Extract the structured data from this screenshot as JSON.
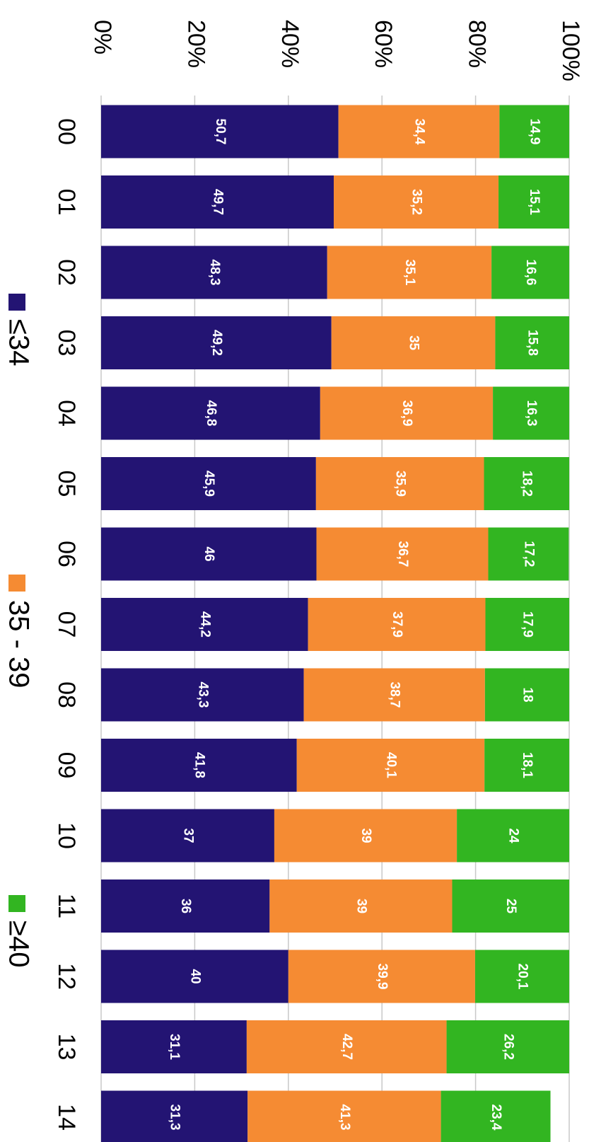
{
  "chart_data": {
    "type": "bar",
    "stacked": true,
    "percent_stacked": true,
    "orientation": "rotated-90-clockwise",
    "categories": [
      "00",
      "01",
      "02",
      "03",
      "04",
      "05",
      "06",
      "07",
      "08",
      "09",
      "10",
      "11",
      "12",
      "13",
      "14"
    ],
    "series": [
      {
        "name": "≤34",
        "color": "#231473",
        "values": [
          50.7,
          49.7,
          48.3,
          49.2,
          46.8,
          45.9,
          46,
          44.2,
          43.3,
          41.8,
          37,
          36,
          40,
          31.1,
          31.3
        ],
        "labels": [
          "50,7",
          "49,7",
          "48,3",
          "49,2",
          "46,8",
          "45,9",
          "46",
          "44,2",
          "43,3",
          "41,8",
          "37",
          "36",
          "40",
          "31,1",
          "31,3"
        ]
      },
      {
        "name": "35 - 39",
        "color": "#f58b33",
        "values": [
          34.4,
          35.2,
          35.1,
          35,
          36.9,
          35.9,
          36.7,
          37.9,
          38.7,
          40.1,
          39,
          39,
          39.9,
          42.7,
          41.3
        ],
        "labels": [
          "34,4",
          "35,2",
          "35,1",
          "35",
          "36,9",
          "35,9",
          "36,7",
          "37,9",
          "38,7",
          "40,1",
          "39",
          "39",
          "39,9",
          "42,7",
          "41,3"
        ]
      },
      {
        "name": "≥40",
        "color": "#32b521",
        "values": [
          14.9,
          15.1,
          16.6,
          15.8,
          16.3,
          18.2,
          17.2,
          17.9,
          18,
          18.1,
          24,
          25,
          20.1,
          26.2,
          23.4
        ],
        "labels": [
          "14,9",
          "15,1",
          "16,6",
          "15,8",
          "16,3",
          "18,2",
          "17,2",
          "17,9",
          "18",
          "18,1",
          "24",
          "25",
          "20,1",
          "26,2",
          "23,4"
        ]
      }
    ],
    "value_axis": {
      "range": [
        0,
        100
      ],
      "ticks": [
        0,
        20,
        40,
        60,
        80,
        100
      ],
      "tick_labels": [
        "0%",
        "20%",
        "40%",
        "60%",
        "80%",
        "100%"
      ]
    },
    "grid": true,
    "legend": "bottom"
  }
}
